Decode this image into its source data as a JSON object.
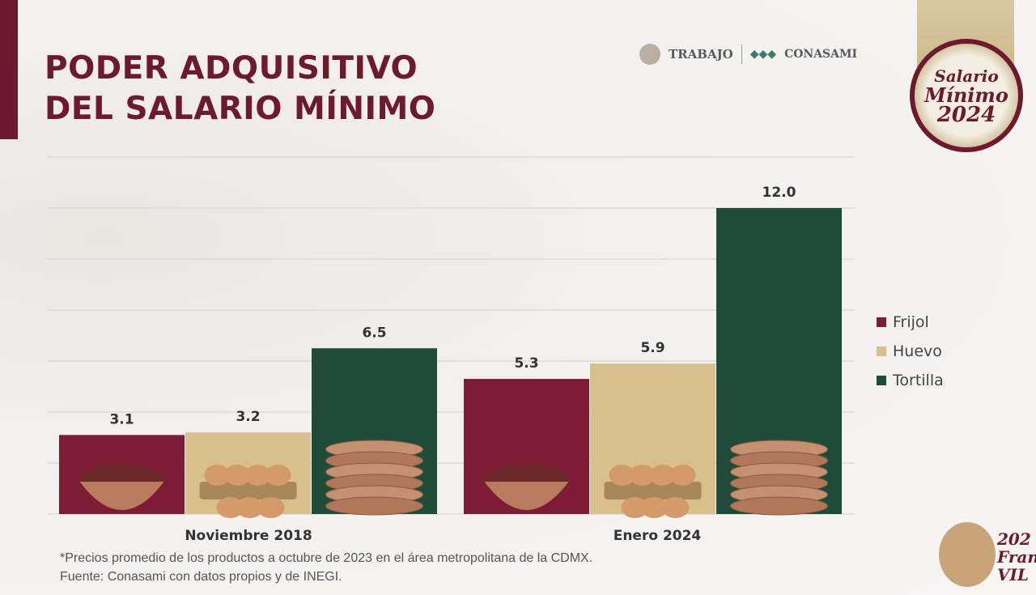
{
  "slide": {
    "title_line1": "PODER ADQUISITIVO",
    "title_line2": "DEL SALARIO MÍNIMO",
    "logo_trabajo": "TRABAJO",
    "logo_conasami": "CONASAMI",
    "badge": [
      "Salario",
      "Mínimo",
      "2024"
    ],
    "footnote1": "*Precios promedio de los productos a octubre de 2023 en el área metropolitana de la CDMX.",
    "footnote2": "Fuente: Conasami con datos propios y de INEGI.",
    "corner_logo_text": [
      "202",
      "Franc",
      "VIL"
    ]
  },
  "chart_data": {
    "type": "bar",
    "title": "PODER ADQUISITIVO DEL SALARIO MÍNIMO",
    "categories": [
      "Noviembre 2018",
      "Enero 2024"
    ],
    "series": [
      {
        "name": "Frijol",
        "values": [
          3.1,
          5.3
        ],
        "color": "#7d1c34"
      },
      {
        "name": "Huevo",
        "values": [
          3.2,
          5.9
        ],
        "color": "#d8bf8c"
      },
      {
        "name": "Tortilla",
        "values": [
          6.5,
          12.0
        ],
        "color": "#1f4c3a"
      }
    ],
    "ylim": [
      0,
      14
    ],
    "grid": true,
    "legend": "right"
  }
}
